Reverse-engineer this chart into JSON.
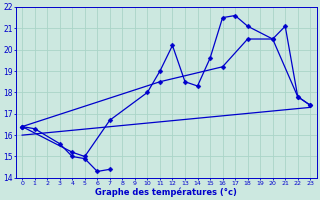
{
  "xlabel": "Graphe des températures (°c)",
  "background_color": "#cce8e0",
  "grid_color": "#aad4c8",
  "line_color": "#0000cc",
  "xlim": [
    -0.5,
    23.5
  ],
  "ylim": [
    14,
    22
  ],
  "xticks": [
    0,
    1,
    2,
    3,
    4,
    5,
    6,
    7,
    8,
    9,
    10,
    11,
    12,
    13,
    14,
    15,
    16,
    17,
    18,
    19,
    20,
    21,
    22,
    23
  ],
  "yticks": [
    14,
    15,
    16,
    17,
    18,
    19,
    20,
    21,
    22
  ],
  "series": [
    {
      "x": [
        0,
        1,
        3,
        4,
        5,
        6,
        7
      ],
      "y": [
        16.4,
        16.3,
        15.6,
        15.0,
        14.9,
        14.3,
        14.4
      ],
      "marker": "D",
      "markersize": 2.5,
      "linewidth": 0.9
    },
    {
      "x": [
        0,
        4,
        5,
        7,
        10,
        11,
        12,
        13,
        14,
        15,
        16,
        17,
        18,
        20,
        22,
        23
      ],
      "y": [
        16.4,
        15.2,
        15.0,
        16.7,
        18.0,
        19.0,
        20.2,
        18.5,
        18.3,
        19.6,
        21.5,
        21.6,
        21.1,
        20.5,
        17.8,
        17.4
      ],
      "marker": "D",
      "markersize": 2.5,
      "linewidth": 0.9
    },
    {
      "x": [
        0,
        23
      ],
      "y": [
        16.0,
        17.3
      ],
      "marker": null,
      "markersize": 0,
      "linewidth": 0.9
    },
    {
      "x": [
        0,
        11,
        16,
        18,
        20,
        21,
        22,
        23
      ],
      "y": [
        16.4,
        18.5,
        19.2,
        20.5,
        20.5,
        21.1,
        17.8,
        17.4
      ],
      "marker": "D",
      "markersize": 2.5,
      "linewidth": 0.9
    }
  ]
}
